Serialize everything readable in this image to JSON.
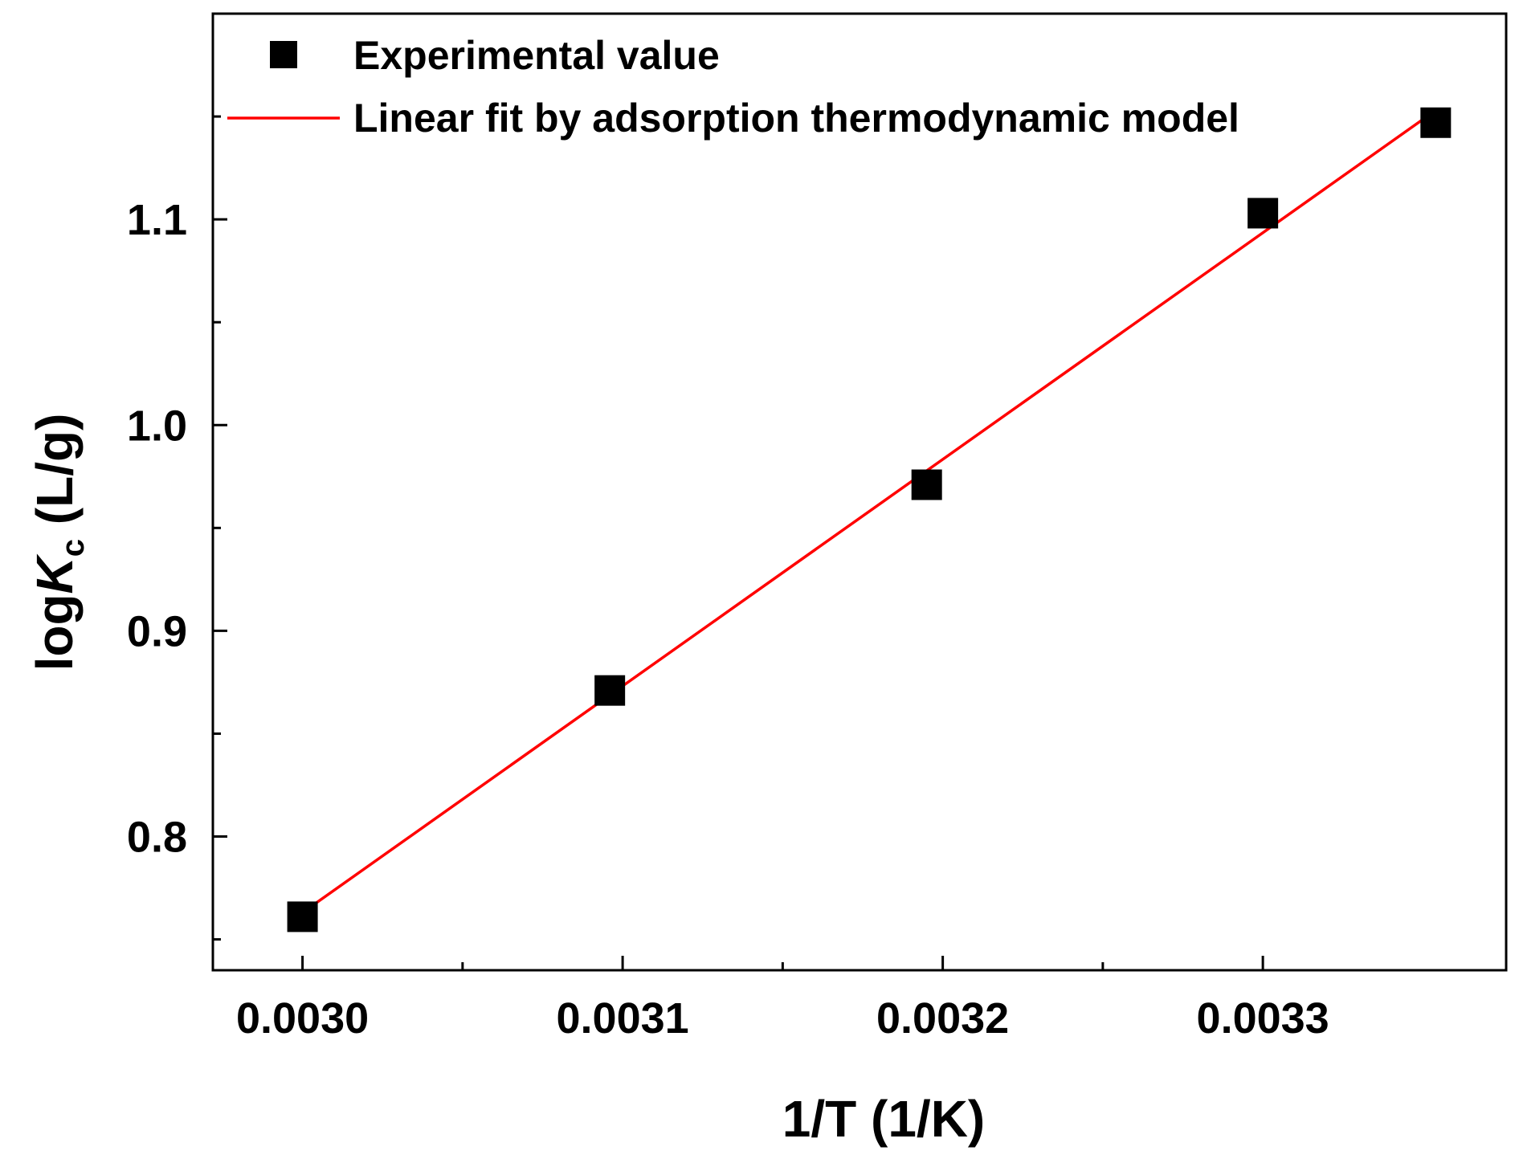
{
  "chart_data": {
    "type": "scatter",
    "xlabel": "1/T (1/K)",
    "ylabel": {
      "prefix": "log",
      "symbol": "K",
      "subscript": "c",
      "unit": " (L/g)"
    },
    "xlim": [
      0.002972,
      0.003376
    ],
    "ylim": [
      0.735,
      1.2
    ],
    "xticks": [
      0.003,
      0.0031,
      0.0032,
      0.0033
    ],
    "xtick_labels": [
      "0.0030",
      "0.0031",
      "0.0032",
      "0.0033"
    ],
    "xminor": [
      0.00305,
      0.00315,
      0.00325
    ],
    "yticks": [
      0.8,
      0.9,
      1.0,
      1.1
    ],
    "ytick_labels": [
      "0.8",
      "0.9",
      "1.0",
      "1.1"
    ],
    "yminor": [
      0.75,
      0.85,
      0.95,
      1.05,
      1.15
    ],
    "grid": false,
    "legend_position": "top-left",
    "series": [
      {
        "name": "Experimental value",
        "kind": "scatter",
        "marker": "square",
        "color": "#000000",
        "x": [
          0.003,
          0.003096,
          0.003195,
          0.0033,
          0.003354
        ],
        "y": [
          0.761,
          0.871,
          0.971,
          1.103,
          1.147
        ]
      },
      {
        "name": "Linear fit by adsorption thermodynamic model",
        "kind": "line",
        "color": "#ff0000",
        "x": [
          0.003,
          0.003354
        ],
        "y": [
          0.763,
          1.153
        ]
      }
    ]
  }
}
